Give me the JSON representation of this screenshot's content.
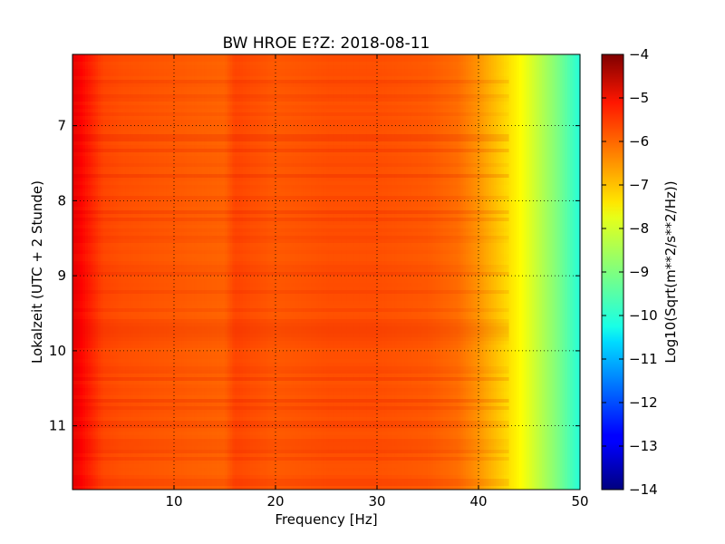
{
  "chart_data": {
    "type": "heatmap",
    "title": "BW HROE E?Z: 2018-08-11",
    "xlabel": "Frequency [Hz]",
    "ylabel": "Lokalzeit (UTC + 2 Stunde)",
    "xlim": [
      0,
      50
    ],
    "ylim": [
      6.05,
      11.85
    ],
    "y_inverted": true,
    "x_ticks": [
      10,
      20,
      30,
      40,
      50
    ],
    "x_tick_labels": [
      "10",
      "20",
      "30",
      "40",
      "50"
    ],
    "y_ticks": [
      7,
      8,
      9,
      10,
      11
    ],
    "y_tick_labels": [
      "7",
      "8",
      "9",
      "10",
      "11"
    ],
    "grid": true,
    "colormap": "jet",
    "colorbar": {
      "label": "Log10(Sqrt(m**2/s**2/Hz))",
      "min": -14,
      "max": -4,
      "ticks": [
        -4,
        -5,
        -6,
        -7,
        -8,
        -9,
        -10,
        -11,
        -12,
        -13,
        -14
      ],
      "tick_labels": [
        "−4",
        "−5",
        "−6",
        "−7",
        "−8",
        "−9",
        "−10",
        "−11",
        "−12",
        "−13",
        "−14"
      ]
    },
    "spectrum_profile": {
      "frequency_hz": [
        0,
        0.5,
        1,
        2,
        3,
        5,
        10,
        15,
        16,
        20,
        25,
        30,
        35,
        38,
        40,
        42,
        44,
        46,
        48,
        50
      ],
      "log10_amplitude": [
        -5.0,
        -5.1,
        -5.3,
        -5.6,
        -5.9,
        -6.0,
        -6.1,
        -6.2,
        -5.9,
        -6.1,
        -6.0,
        -6.0,
        -6.1,
        -6.3,
        -6.7,
        -7.2,
        -7.7,
        -8.4,
        -9.1,
        -9.9
      ]
    }
  }
}
